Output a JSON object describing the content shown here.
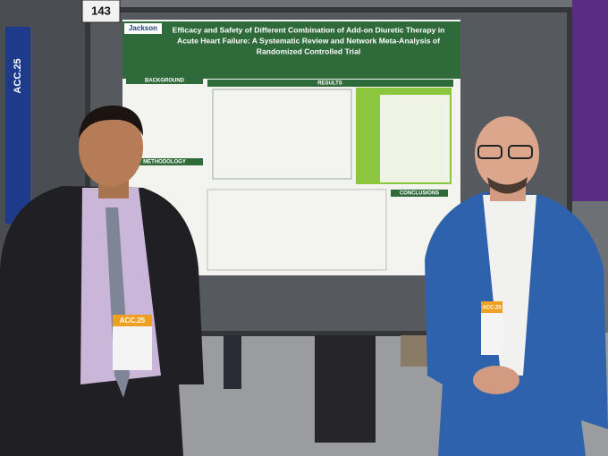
{
  "board_number": "143",
  "poster": {
    "logo": "Jackson",
    "title_lines": [
      "Efficacy and Safety of Different Combination of Add-on Diuretic Therapy in",
      "Acute Heart Failure: A Systematic Review and Network Meta-Analysis of",
      "Randomized Controlled Trial"
    ],
    "sections": {
      "background": "BACKGROUND",
      "results": "RESULTS",
      "methodology": "METHODOLOGY",
      "conclusions": "CONCLUSIONS"
    }
  },
  "banner": "ACC.25",
  "badges": [
    "ACC.25",
    "ACC.25"
  ]
}
